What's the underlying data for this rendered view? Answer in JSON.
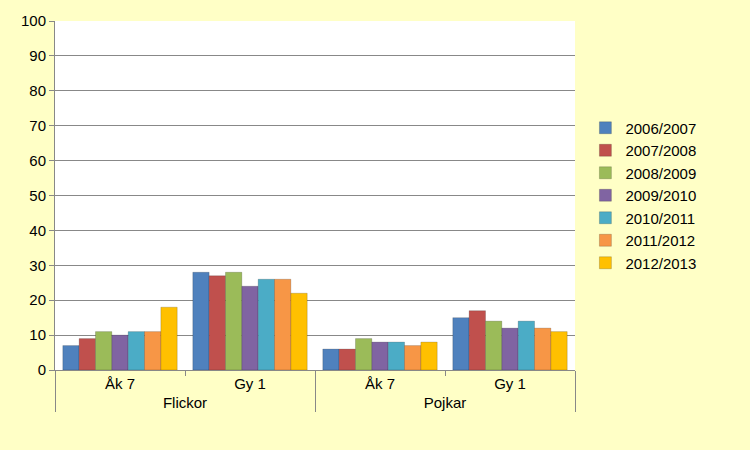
{
  "chart_data": {
    "type": "bar",
    "categories": [
      [
        "Flickor",
        "Åk 7"
      ],
      [
        "Flickor",
        "Gy 1"
      ],
      [
        "Pojkar",
        "Åk 7"
      ],
      [
        "Pojkar",
        "Gy 1"
      ]
    ],
    "series": [
      {
        "name": "2006/2007",
        "color": "#4F81BD",
        "values": [
          7,
          28,
          6,
          15
        ]
      },
      {
        "name": "2007/2008",
        "color": "#C0504D",
        "values": [
          9,
          27,
          6,
          17
        ]
      },
      {
        "name": "2008/2009",
        "color": "#9BBB59",
        "values": [
          11,
          28,
          9,
          14
        ]
      },
      {
        "name": "2009/2010",
        "color": "#8064A2",
        "values": [
          10,
          24,
          8,
          12
        ]
      },
      {
        "name": "2010/2011",
        "color": "#4BACC6",
        "values": [
          11,
          26,
          8,
          14
        ]
      },
      {
        "name": "2011/2012",
        "color": "#F79646",
        "values": [
          11,
          26,
          7,
          12
        ]
      },
      {
        "name": "2012/2013",
        "color": "#FFC000",
        "values": [
          18,
          22,
          8,
          11
        ]
      }
    ],
    "ylim": [
      0,
      100
    ],
    "yticks": [
      0,
      10,
      20,
      30,
      40,
      50,
      60,
      70,
      80,
      90,
      100
    ],
    "grid": true,
    "legend": "right"
  }
}
